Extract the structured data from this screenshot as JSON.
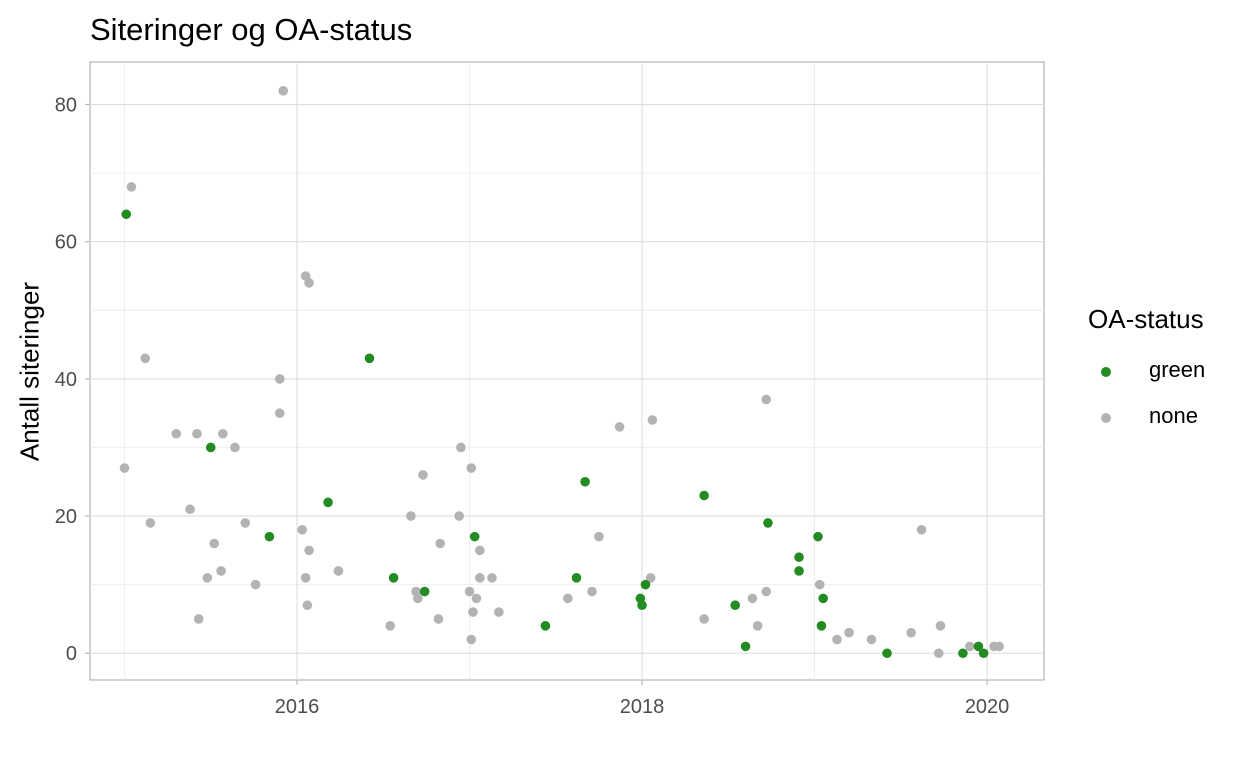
{
  "chart_data": {
    "type": "scatter",
    "title": "Siteringer og OA-status",
    "xlabel": "",
    "ylabel": "Antall siteringer",
    "xlim": [
      2014.8,
      2020.33
    ],
    "ylim": [
      -3.9,
      86.2
    ],
    "x_ticks": [
      2016,
      2018,
      2020
    ],
    "x_tick_labels": [
      "2016",
      "2018",
      "2020"
    ],
    "y_ticks": [
      0,
      20,
      40,
      60,
      80
    ],
    "y_tick_labels": [
      "0",
      "20",
      "40",
      "60",
      "80"
    ],
    "grid": true,
    "legend": {
      "title": "OA-status",
      "position": "right",
      "entries": [
        {
          "name": "green",
          "color": "#228B22"
        },
        {
          "name": "none",
          "color": "#B3B3B3"
        }
      ]
    },
    "series": [
      {
        "name": "green",
        "color": "#228B22",
        "points": [
          [
            2015.01,
            64
          ],
          [
            2015.5,
            30
          ],
          [
            2015.84,
            17
          ],
          [
            2016.18,
            22
          ],
          [
            2016.42,
            43
          ],
          [
            2016.56,
            11
          ],
          [
            2016.74,
            9
          ],
          [
            2017.03,
            17
          ],
          [
            2017.44,
            4
          ],
          [
            2017.62,
            11
          ],
          [
            2017.67,
            25
          ],
          [
            2017.99,
            8
          ],
          [
            2018.0,
            7
          ],
          [
            2018.02,
            10
          ],
          [
            2018.36,
            23
          ],
          [
            2018.54,
            7
          ],
          [
            2018.6,
            1
          ],
          [
            2018.73,
            19
          ],
          [
            2018.91,
            14
          ],
          [
            2018.91,
            12
          ],
          [
            2019.02,
            17
          ],
          [
            2019.04,
            4
          ],
          [
            2019.05,
            8
          ],
          [
            2019.42,
            0
          ],
          [
            2019.86,
            0
          ],
          [
            2019.95,
            1
          ],
          [
            2019.98,
            0
          ]
        ]
      },
      {
        "name": "none",
        "color": "#B3B3B3",
        "points": [
          [
            2015.0,
            27
          ],
          [
            2015.04,
            68
          ],
          [
            2015.12,
            43
          ],
          [
            2015.15,
            19
          ],
          [
            2015.3,
            32
          ],
          [
            2015.38,
            21
          ],
          [
            2015.42,
            32
          ],
          [
            2015.43,
            5
          ],
          [
            2015.48,
            11
          ],
          [
            2015.52,
            16
          ],
          [
            2015.56,
            12
          ],
          [
            2015.57,
            32
          ],
          [
            2015.64,
            30
          ],
          [
            2015.7,
            19
          ],
          [
            2015.76,
            10
          ],
          [
            2015.9,
            40
          ],
          [
            2015.9,
            35
          ],
          [
            2015.92,
            82
          ],
          [
            2016.03,
            18
          ],
          [
            2016.05,
            55
          ],
          [
            2016.05,
            11
          ],
          [
            2016.06,
            7
          ],
          [
            2016.07,
            15
          ],
          [
            2016.07,
            54
          ],
          [
            2016.24,
            12
          ],
          [
            2016.54,
            4
          ],
          [
            2016.66,
            20
          ],
          [
            2016.69,
            9
          ],
          [
            2016.7,
            8
          ],
          [
            2016.73,
            26
          ],
          [
            2016.82,
            5
          ],
          [
            2016.83,
            16
          ],
          [
            2016.94,
            20
          ],
          [
            2016.95,
            30
          ],
          [
            2017.0,
            9
          ],
          [
            2017.01,
            27
          ],
          [
            2017.01,
            2
          ],
          [
            2017.02,
            6
          ],
          [
            2017.04,
            8
          ],
          [
            2017.06,
            15
          ],
          [
            2017.06,
            11
          ],
          [
            2017.13,
            11
          ],
          [
            2017.17,
            6
          ],
          [
            2017.75,
            17
          ],
          [
            2017.57,
            8
          ],
          [
            2017.71,
            9
          ],
          [
            2017.87,
            33
          ],
          [
            2018.05,
            11
          ],
          [
            2018.06,
            34
          ],
          [
            2018.36,
            5
          ],
          [
            2018.64,
            8
          ],
          [
            2018.67,
            4
          ],
          [
            2018.72,
            9
          ],
          [
            2018.72,
            37
          ],
          [
            2019.03,
            10
          ],
          [
            2019.13,
            2
          ],
          [
            2019.2,
            3
          ],
          [
            2019.33,
            2
          ],
          [
            2019.56,
            3
          ],
          [
            2019.62,
            18
          ],
          [
            2019.72,
            0
          ],
          [
            2019.73,
            4
          ],
          [
            2019.9,
            1
          ],
          [
            2020.04,
            1
          ],
          [
            2020.07,
            1
          ]
        ]
      }
    ]
  }
}
